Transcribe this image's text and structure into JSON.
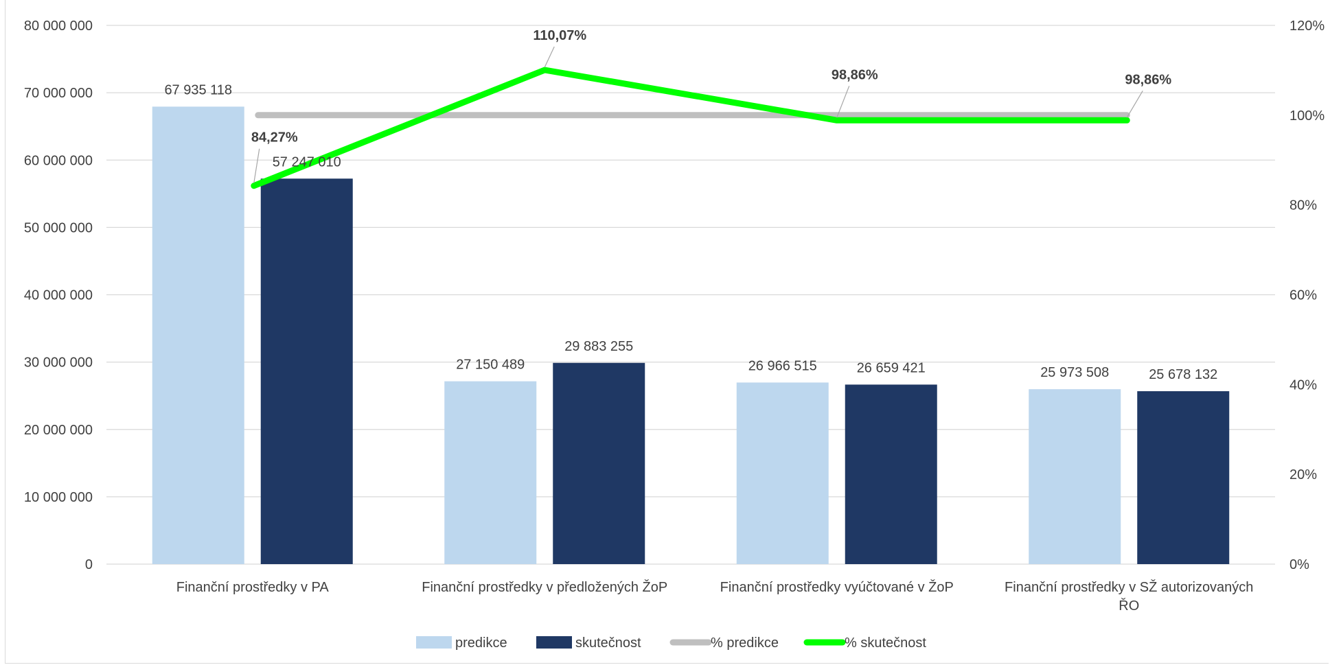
{
  "chart_data": {
    "type": "bar",
    "categories": [
      [
        "Finanční prostředky v PA"
      ],
      [
        "Finanční prostředky v předložených ŽoP"
      ],
      [
        "Finanční prostředky vyúčtované v ŽoP"
      ],
      [
        "Finanční prostředky v SŽ autorizovaných",
        "ŘO"
      ]
    ],
    "series": [
      {
        "name": "predikce",
        "type": "bar",
        "axis": "left",
        "color": "#bdd7ee",
        "values": [
          67935118,
          27150489,
          26966515,
          25973508
        ],
        "labels": [
          "67 935 118",
          "27 150 489",
          "26 966 515",
          "25 973 508"
        ]
      },
      {
        "name": "skutečnost",
        "type": "bar",
        "axis": "left",
        "color": "#1f3864",
        "values": [
          57247010,
          29883255,
          26659421,
          25678132
        ],
        "labels": [
          "57 247 010",
          "29 883 255",
          "26 659 421",
          "25 678 132"
        ]
      },
      {
        "name": "% predikce",
        "type": "line",
        "axis": "right",
        "color": "#bfbfbf",
        "values": [
          1.0,
          1.0,
          1.0,
          1.0
        ]
      },
      {
        "name": "% skutečnost",
        "type": "line",
        "axis": "right",
        "color": "#00ff00",
        "values": [
          0.8427,
          1.1007,
          0.9886,
          0.9886
        ],
        "labels": [
          "84,27%",
          "110,07%",
          "98,86%",
          "98,86%"
        ]
      }
    ],
    "y_left": {
      "min": 0,
      "max": 80000000,
      "ticks": [
        "0",
        "10 000 000",
        "20 000 000",
        "30 000 000",
        "40 000 000",
        "50 000 000",
        "60 000 000",
        "70 000 000",
        "80 000 000"
      ]
    },
    "y_right": {
      "min": 0,
      "max": 1.2,
      "ticks": [
        "0%",
        "20%",
        "40%",
        "60%",
        "80%",
        "100%",
        "120%"
      ]
    },
    "grid": true,
    "legend": "bottom",
    "title": "",
    "xlabel": "",
    "ylabel": ""
  }
}
